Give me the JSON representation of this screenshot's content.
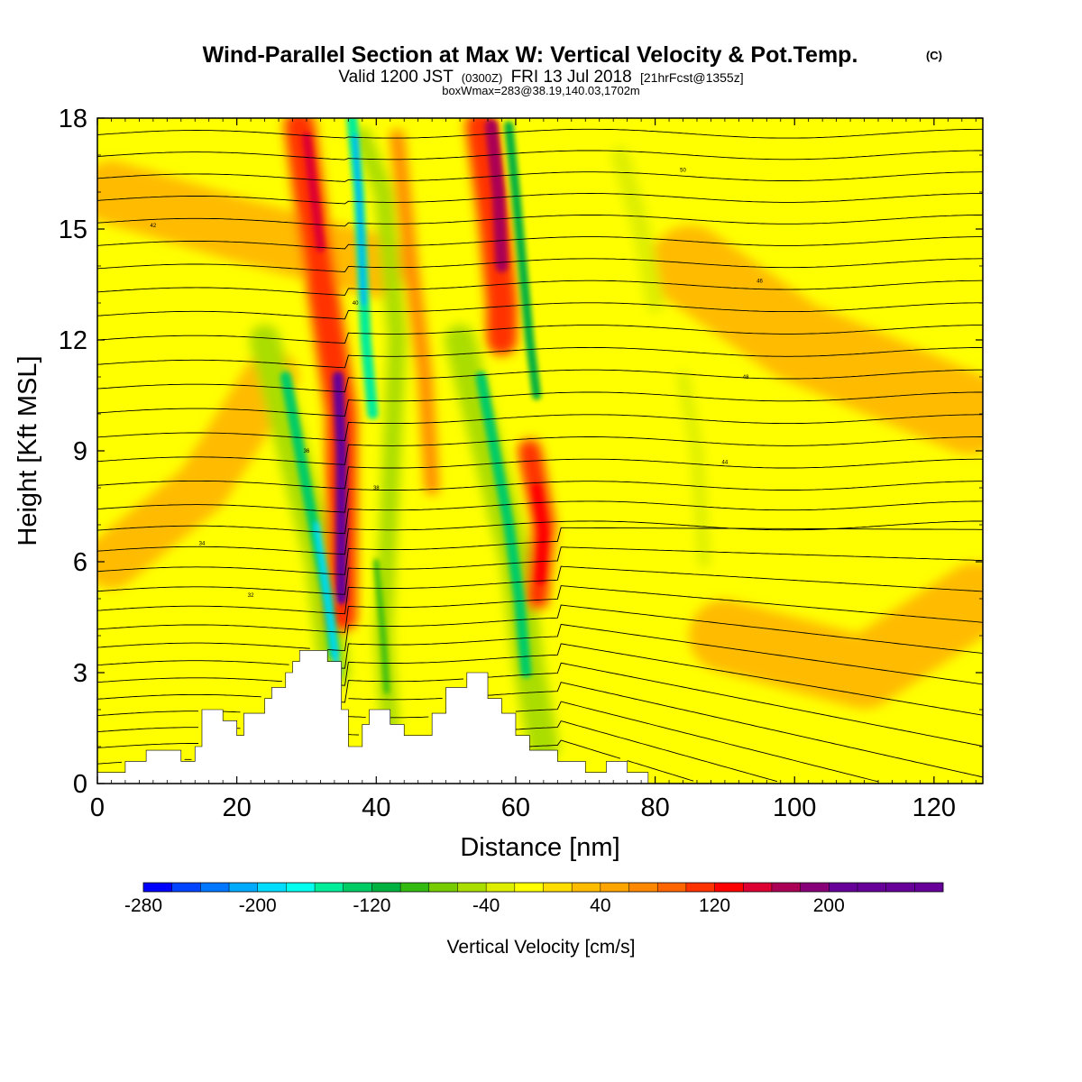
{
  "header": {
    "title": "Wind-Parallel Section at Max W: Vertical Velocity & Pot.Temp.",
    "copyright": "(C)",
    "valid_main": "Valid 1200 JST",
    "valid_utc": "(0300Z)",
    "valid_date": "FRI 13 Jul 2018",
    "forecast_info": "[21hrFcst@1355z]",
    "box_info": "boxWmax=283@38.19,140.03,1702m"
  },
  "colors": {
    "background": "#ffff00",
    "terrain": "#ffffff",
    "contour": "#000000",
    "colorbar": [
      "#0000ff",
      "#0044ff",
      "#0077ff",
      "#00aaff",
      "#00ddff",
      "#00ffee",
      "#00ee99",
      "#00cc66",
      "#00b040",
      "#33bb11",
      "#77cc00",
      "#aadd00",
      "#ddee00",
      "#ffff00",
      "#ffdd00",
      "#ffbb00",
      "#ffa500",
      "#ff8800",
      "#ff6600",
      "#ff3300",
      "#ff0000",
      "#dd0033",
      "#aa0055",
      "#880077",
      "#660099"
    ]
  },
  "chart_data": {
    "type": "heatmap",
    "xlabel": "Distance [nm]",
    "ylabel": "Height [Kft MSL]",
    "xlim": [
      0,
      127
    ],
    "ylim": [
      0,
      18
    ],
    "xticks": [
      0,
      20,
      40,
      60,
      80,
      100,
      120
    ],
    "yticks": [
      0,
      3,
      6,
      9,
      12,
      15,
      18
    ],
    "colorbar": {
      "label": "Vertical Velocity [cm/s]",
      "range": [
        -280,
        280
      ],
      "step": 20,
      "tick_labels": [
        "-280",
        "-200",
        "-120",
        "-40",
        "40",
        "120",
        "200"
      ],
      "tick_values": [
        -280,
        -200,
        -120,
        -40,
        40,
        120,
        200
      ]
    },
    "terrain_profile": {
      "x": [
        0,
        4,
        4,
        7,
        7,
        12,
        12,
        14,
        14,
        15,
        15,
        18,
        18,
        20,
        20,
        21,
        21,
        24,
        24,
        25,
        25,
        27,
        27,
        28,
        28,
        29,
        29,
        33,
        33,
        35,
        35,
        36,
        36,
        38,
        38,
        39,
        39,
        42,
        42,
        44,
        44,
        48,
        48,
        50,
        50,
        53,
        53,
        56,
        56,
        58,
        58,
        60,
        60,
        62,
        62,
        66,
        66,
        70,
        70,
        73,
        73,
        76,
        76,
        79,
        79,
        82,
        82,
        127
      ],
      "height": [
        0.3,
        0.3,
        0.6,
        0.6,
        0.9,
        0.9,
        0.6,
        0.6,
        1.0,
        1.0,
        2.0,
        2.0,
        1.7,
        1.7,
        1.3,
        1.3,
        1.9,
        1.9,
        2.3,
        2.3,
        2.6,
        2.6,
        3.0,
        3.0,
        3.3,
        3.3,
        3.6,
        3.6,
        3.3,
        3.3,
        2.0,
        2.0,
        1.0,
        1.0,
        1.6,
        1.6,
        2.0,
        2.0,
        1.6,
        1.6,
        1.3,
        1.3,
        1.9,
        1.9,
        2.6,
        2.6,
        3.0,
        3.0,
        2.3,
        2.3,
        1.9,
        1.9,
        1.3,
        1.3,
        0.9,
        0.9,
        0.6,
        0.6,
        0.3,
        0.3,
        0.6,
        0.6,
        0.3,
        0.3,
        0.0,
        0.0,
        0.0,
        0.0
      ]
    },
    "updraft_maxima": [
      {
        "x_nm": 35.0,
        "height_kft": 8.5,
        "w_cms": 283
      },
      {
        "x_nm": 57.5,
        "height_kft": 15.5,
        "w_cms": 180
      },
      {
        "x_nm": 63.5,
        "height_kft": 6.8,
        "w_cms": 120
      },
      {
        "x_nm": 30.5,
        "height_kft": 16.5,
        "w_cms": 100
      }
    ],
    "downdraft_minima": [
      {
        "x_nm": 33.0,
        "height_kft": 5.0,
        "w_cms": -200
      },
      {
        "x_nm": 38.0,
        "height_kft": 14.0,
        "w_cms": -160
      },
      {
        "x_nm": 60.0,
        "height_kft": 4.5,
        "w_cms": -140
      },
      {
        "x_nm": 62.0,
        "height_kft": 13.0,
        "w_cms": -100
      }
    ],
    "theta_contours": {
      "interval_c": 1,
      "labels_shown": [
        "32",
        "34",
        "36",
        "38",
        "40",
        "42",
        "44",
        "46",
        "48",
        "50"
      ]
    }
  }
}
